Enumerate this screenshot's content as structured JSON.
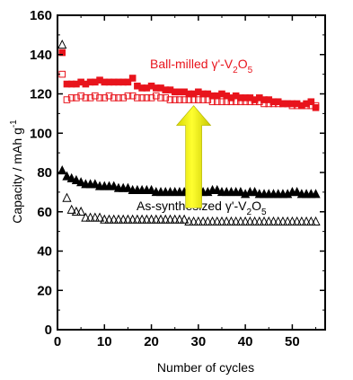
{
  "chart_data": {
    "type": "scatter",
    "xlabel": "Number of cycles",
    "ylabel": "Capacity / mAh g",
    "ylabel_sup": "-1",
    "xlim": [
      0,
      57
    ],
    "ylim": [
      0,
      160
    ],
    "xticks": [
      0,
      10,
      20,
      30,
      40,
      50
    ],
    "yticks": [
      0,
      20,
      40,
      60,
      80,
      100,
      120,
      140,
      160
    ],
    "grid": false,
    "annotations": {
      "ball_milled": {
        "prefix": "Ball-milled γ'-V",
        "sub1": "2",
        "mid": "O",
        "sub2": "5",
        "color": "#e8141c"
      },
      "as_synthesized": {
        "prefix": "As-synthesized γ'-V",
        "sub1": "2",
        "mid": "O",
        "sub2": "5",
        "color": "#000000"
      }
    },
    "arrow": {
      "from_y": 62,
      "to_y": 114,
      "x": 29,
      "color": "#f0f000",
      "direction": "up"
    },
    "series": [
      {
        "marker": "square-filled",
        "color": "#e8141c",
        "x": [
          1,
          2,
          3,
          4,
          5,
          6,
          7,
          8,
          9,
          10,
          11,
          12,
          13,
          14,
          15,
          16,
          17,
          18,
          19,
          20,
          21,
          22,
          23,
          24,
          25,
          26,
          27,
          28,
          29,
          30,
          31,
          32,
          33,
          34,
          35,
          36,
          37,
          38,
          39,
          40,
          41,
          42,
          43,
          44,
          45,
          46,
          47,
          48,
          49,
          50,
          51,
          52,
          53,
          54,
          55
        ],
        "values": [
          141,
          125,
          125,
          125,
          126,
          125,
          126,
          126,
          127,
          126,
          126,
          126,
          126,
          126,
          126,
          128,
          124,
          123,
          123,
          124,
          123,
          123,
          122,
          122,
          121,
          121,
          121,
          120,
          120,
          121,
          120,
          120,
          119,
          119,
          120,
          119,
          118,
          119,
          118,
          118,
          118,
          117,
          118,
          117,
          117,
          116,
          116,
          115,
          115,
          115,
          115,
          114,
          115,
          116,
          113
        ]
      },
      {
        "marker": "square-open",
        "color": "#e8141c",
        "x": [
          1,
          2,
          3,
          4,
          5,
          6,
          7,
          8,
          9,
          10,
          11,
          12,
          13,
          14,
          15,
          16,
          17,
          18,
          19,
          20,
          21,
          22,
          23,
          24,
          25,
          26,
          27,
          28,
          29,
          30,
          31,
          32,
          33,
          34,
          35,
          36,
          37,
          38,
          39,
          40,
          41,
          42,
          43,
          44,
          45,
          46,
          47,
          48,
          49,
          50,
          51,
          52,
          53,
          54,
          55
        ],
        "values": [
          130,
          117,
          118,
          118,
          119,
          118,
          118,
          119,
          118,
          118,
          119,
          118,
          118,
          118,
          119,
          119,
          118,
          118,
          118,
          118,
          119,
          118,
          118,
          117,
          117,
          117,
          117,
          117,
          117,
          117,
          117,
          117,
          116,
          116,
          116,
          116,
          116,
          116,
          116,
          116,
          116,
          116,
          116,
          115,
          115,
          115,
          115,
          115,
          115,
          114,
          114,
          114,
          114,
          114,
          114
        ]
      },
      {
        "marker": "triangle-filled",
        "color": "#000000",
        "x": [
          1,
          2,
          3,
          4,
          5,
          6,
          7,
          8,
          9,
          10,
          11,
          12,
          13,
          14,
          15,
          16,
          17,
          18,
          19,
          20,
          21,
          22,
          23,
          24,
          25,
          26,
          27,
          28,
          29,
          30,
          31,
          32,
          33,
          34,
          35,
          36,
          37,
          38,
          39,
          40,
          41,
          42,
          43,
          44,
          45,
          46,
          47,
          48,
          49,
          50,
          51,
          52,
          53,
          54,
          55
        ],
        "values": [
          81,
          78,
          77,
          76,
          75,
          74,
          74,
          74,
          73,
          73,
          73,
          73,
          72,
          72,
          72,
          71,
          71,
          71,
          71,
          71,
          70,
          70,
          70,
          70,
          70,
          70,
          70,
          70,
          70,
          70,
          70,
          70,
          71,
          71,
          70,
          70,
          70,
          70,
          70,
          69,
          70,
          70,
          69,
          69,
          69,
          69,
          69,
          69,
          69,
          70,
          70,
          69,
          69,
          69,
          69
        ]
      },
      {
        "marker": "triangle-open",
        "color": "#000000",
        "x": [
          1,
          2,
          3,
          4,
          5,
          6,
          7,
          8,
          9,
          10,
          11,
          12,
          13,
          14,
          15,
          16,
          17,
          18,
          19,
          20,
          21,
          22,
          23,
          24,
          25,
          26,
          27,
          28,
          29,
          30,
          31,
          32,
          33,
          34,
          35,
          36,
          37,
          38,
          39,
          40,
          41,
          42,
          43,
          44,
          45,
          46,
          47,
          48,
          49,
          50,
          51,
          52,
          53,
          54,
          55
        ],
        "values": [
          145,
          67,
          61,
          60,
          60,
          57,
          57,
          57,
          57,
          56,
          56,
          56,
          56,
          56,
          56,
          56,
          56,
          56,
          56,
          56,
          56,
          56,
          56,
          56,
          56,
          56,
          56,
          55,
          55,
          55,
          55,
          55,
          55,
          55,
          55,
          55,
          55,
          55,
          55,
          55,
          55,
          55,
          55,
          55,
          55,
          55,
          55,
          55,
          55,
          55,
          55,
          55,
          55,
          55,
          55
        ]
      }
    ]
  }
}
